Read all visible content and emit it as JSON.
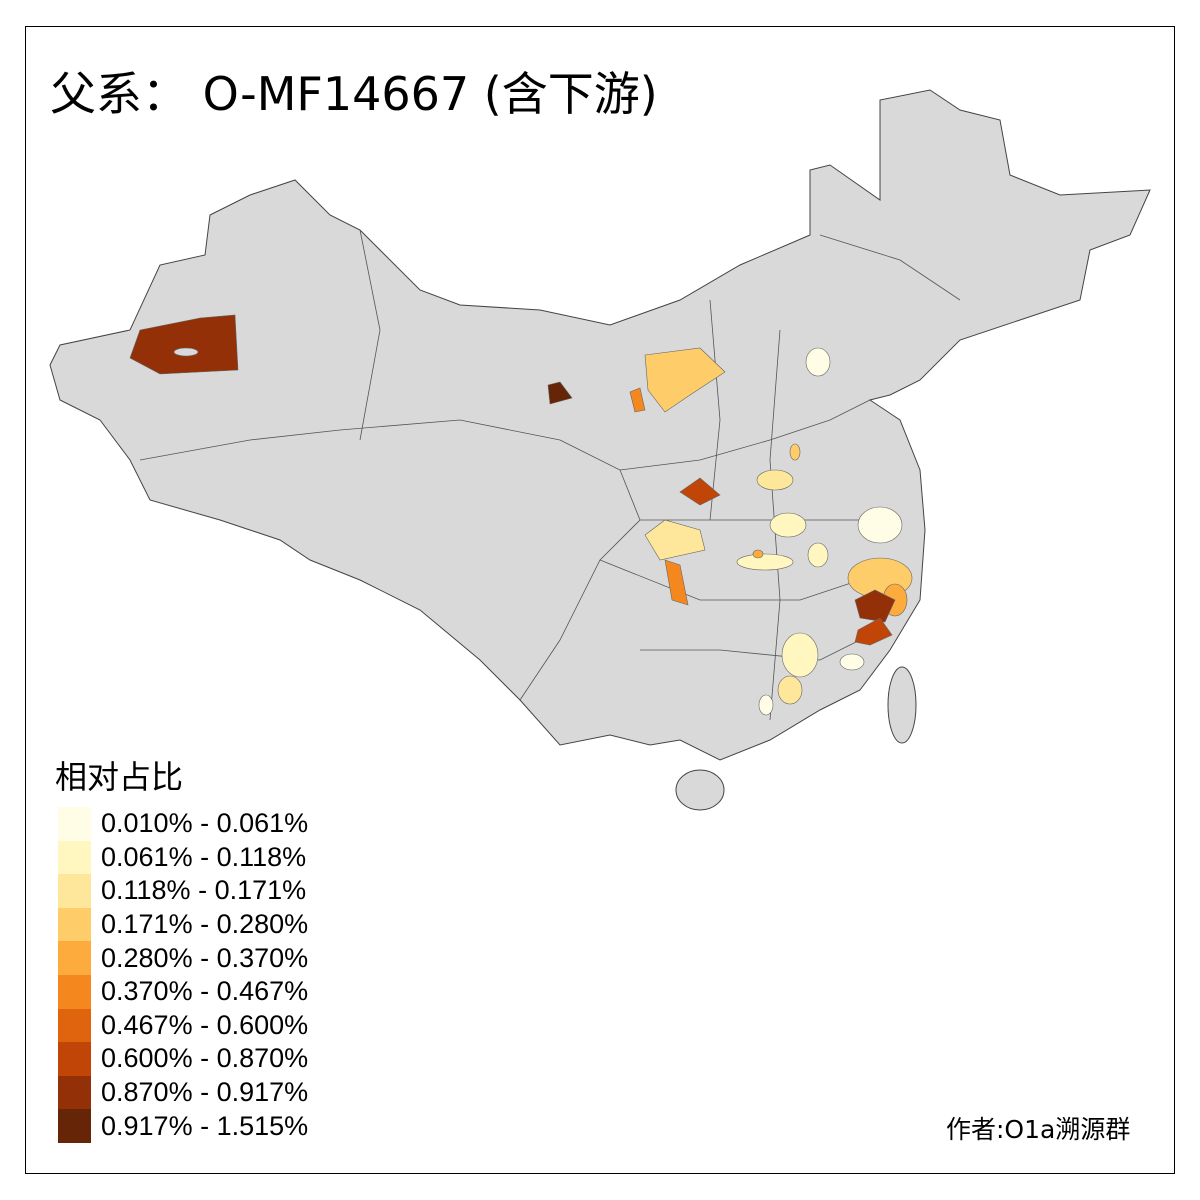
{
  "title": "父系： O-MF14667 (含下游)",
  "legend": {
    "title": "相对占比",
    "items": [
      {
        "label": "0.010% - 0.061%",
        "color": "#fffde5"
      },
      {
        "label": "0.061% - 0.118%",
        "color": "#fff6c0"
      },
      {
        "label": "0.118% - 0.171%",
        "color": "#fee79a"
      },
      {
        "label": "0.171% - 0.280%",
        "color": "#fecd6a"
      },
      {
        "label": "0.280% - 0.370%",
        "color": "#fdab3c"
      },
      {
        "label": "0.370% - 0.467%",
        "color": "#f5871f"
      },
      {
        "label": "0.467% - 0.600%",
        "color": "#e0640e"
      },
      {
        "label": "0.600% - 0.870%",
        "color": "#c04506"
      },
      {
        "label": "0.870% - 0.917%",
        "color": "#933008"
      },
      {
        "label": "0.917% - 1.515%",
        "color": "#662506"
      }
    ]
  },
  "no_data_color": "#d9d9d9",
  "credit": "作者:O1a溯源群"
}
